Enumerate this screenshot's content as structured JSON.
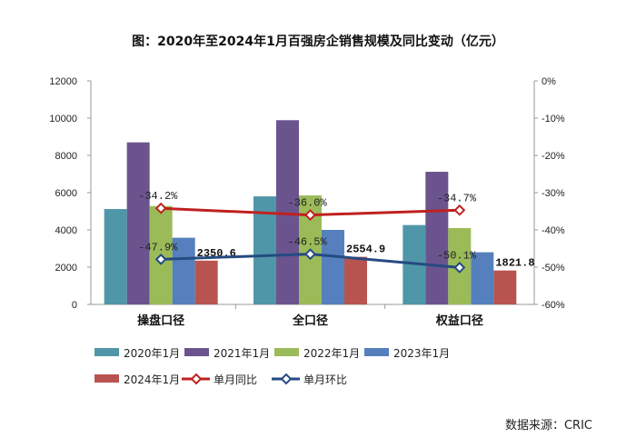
{
  "chart_data": {
    "type": "bar",
    "title": "图：2020年至2024年1月百强房企销售规模及同比变动（亿元）",
    "categories": [
      "操盘口径",
      "全口径",
      "权益口径"
    ],
    "series": [
      {
        "name": "2020年1月",
        "type": "bar",
        "color": "#4f97a8",
        "values": [
          5120,
          5800,
          4260
        ]
      },
      {
        "name": "2021年1月",
        "type": "bar",
        "color": "#6b548e",
        "values": [
          8700,
          9890,
          7120
        ]
      },
      {
        "name": "2022年1月",
        "type": "bar",
        "color": "#9bbb59",
        "values": [
          5280,
          5850,
          4100
        ]
      },
      {
        "name": "2023年1月",
        "type": "bar",
        "color": "#5580bd",
        "values": [
          3580,
          4000,
          2800
        ]
      },
      {
        "name": "2024年1月",
        "type": "bar",
        "color": "#b85450",
        "values": [
          2350.6,
          2554.9,
          1821.8
        ],
        "labels": [
          "2350.6",
          "2554.9",
          "1821.8"
        ]
      },
      {
        "name": "单月同比",
        "type": "line",
        "axis": "right",
        "color": "#c0211f",
        "values": [
          -34.2,
          -36.0,
          -34.7
        ],
        "labels": [
          "-34.2%",
          "-36.0%",
          "-34.7%"
        ]
      },
      {
        "name": "单月环比",
        "type": "line",
        "axis": "right",
        "color": "#264a82",
        "values": [
          -47.9,
          -46.5,
          -50.1
        ],
        "labels": [
          "-47.9%",
          "-46.5%",
          "-50.1%"
        ]
      }
    ],
    "ylim": [
      0,
      12000
    ],
    "yticks": [
      "0",
      "2000",
      "4000",
      "6000",
      "8000",
      "10000",
      "12000"
    ],
    "y2lim": [
      -60,
      0
    ],
    "y2ticks": [
      "0%",
      "-10%",
      "-20%",
      "-30%",
      "-40%",
      "-50%",
      "-60%"
    ],
    "grid": false,
    "legend": "bottom"
  },
  "source": "数据来源：CRIC"
}
